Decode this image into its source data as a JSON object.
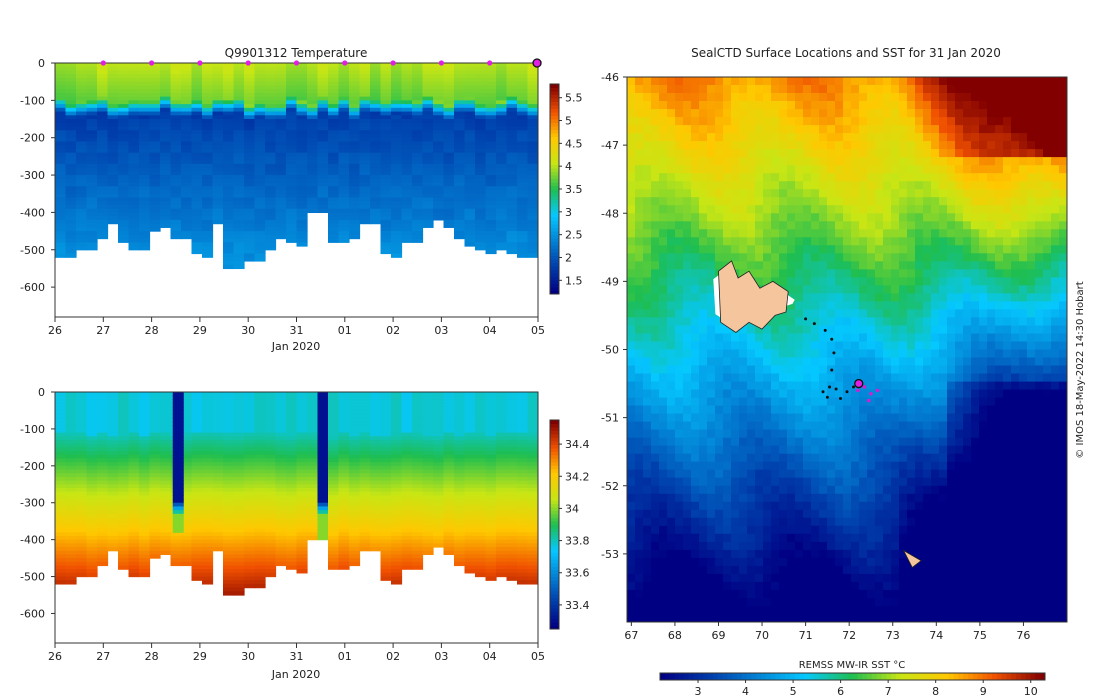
{
  "chart_data": [
    {
      "type": "heatmap",
      "title": "Q9901312  Temperature",
      "xlabel": "Jan 2020",
      "ylabel": "",
      "x_ticks": [
        "26",
        "27",
        "28",
        "29",
        "30",
        "31",
        "01",
        "02",
        "03",
        "04",
        "05"
      ],
      "y_ticks": [
        0,
        -100,
        -200,
        -300,
        -400,
        -500,
        -600
      ],
      "ylim": [
        -680,
        0
      ],
      "colorbar": {
        "ticks": [
          1.5,
          2,
          2.5,
          3,
          3.5,
          4,
          4.5,
          5,
          5.5
        ],
        "range": [
          1.2,
          5.8
        ]
      },
      "profile_bottoms_m": [
        -520,
        -520,
        -495,
        -495,
        -465,
        -425,
        -480,
        -495,
        -500,
        -445,
        -435,
        -470,
        -470,
        -510,
        -515,
        -425,
        -545,
        -545,
        -530,
        -530,
        -495,
        -470,
        -480,
        -485,
        -400,
        -400,
        -480,
        -480,
        -465,
        -430,
        -430,
        -510,
        -515,
        -475,
        -475,
        -435,
        -420,
        -440,
        -470,
        -485,
        -500,
        -505,
        -500,
        -505,
        -520,
        -520
      ],
      "markers_days": [
        1,
        2,
        3,
        4,
        5,
        6,
        7,
        8,
        9
      ]
    },
    {
      "type": "heatmap",
      "title": "",
      "xlabel": "Jan 2020",
      "ylabel": "",
      "x_ticks": [
        "26",
        "27",
        "28",
        "29",
        "30",
        "31",
        "01",
        "02",
        "03",
        "04",
        "05"
      ],
      "y_ticks": [
        0,
        -100,
        -200,
        -300,
        -400,
        -500,
        -600
      ],
      "ylim": [
        -680,
        0
      ],
      "colorbar": {
        "ticks": [
          33.4,
          33.6,
          33.8,
          34,
          34.2,
          34.4
        ],
        "range": [
          33.25,
          34.55
        ]
      }
    },
    {
      "type": "heatmap",
      "title": "SealCTD Surface Locations and SST for 31 Jan 2020",
      "xlabel": "",
      "ylabel": "",
      "x_ticks": [
        67,
        68,
        69,
        70,
        71,
        72,
        73,
        74,
        75,
        76
      ],
      "y_ticks": [
        -46,
        -47,
        -48,
        -49,
        -50,
        -51,
        -52,
        -53
      ],
      "xlim": [
        66.9,
        77.0
      ],
      "ylim": [
        -54.0,
        -46.0
      ],
      "colorbar": {
        "label": "REMSS MW-IR SST °C",
        "ticks": [
          3,
          4,
          5,
          6,
          7,
          8,
          9,
          10
        ],
        "range": [
          2.2,
          10.3
        ]
      },
      "track": [
        [
          71.0,
          -49.55
        ],
        [
          71.2,
          -49.62
        ],
        [
          71.45,
          -49.72
        ],
        [
          71.6,
          -49.85
        ],
        [
          71.65,
          -50.05
        ],
        [
          71.6,
          -50.3
        ],
        [
          71.55,
          -50.55
        ],
        [
          71.4,
          -50.62
        ],
        [
          71.5,
          -50.7
        ],
        [
          71.7,
          -50.58
        ],
        [
          71.8,
          -50.72
        ],
        [
          71.95,
          -50.62
        ],
        [
          72.1,
          -50.55
        ],
        [
          72.2,
          -50.6
        ]
      ],
      "track_latest": [
        [
          72.2,
          -50.6
        ],
        [
          72.35,
          -50.55
        ],
        [
          72.5,
          -50.65
        ],
        [
          72.65,
          -50.6
        ],
        [
          72.45,
          -50.75
        ]
      ],
      "current_position": [
        72.22,
        -50.5
      ]
    }
  ],
  "watermark": "© IMOS 18-May-2022 14:30 Hobart"
}
